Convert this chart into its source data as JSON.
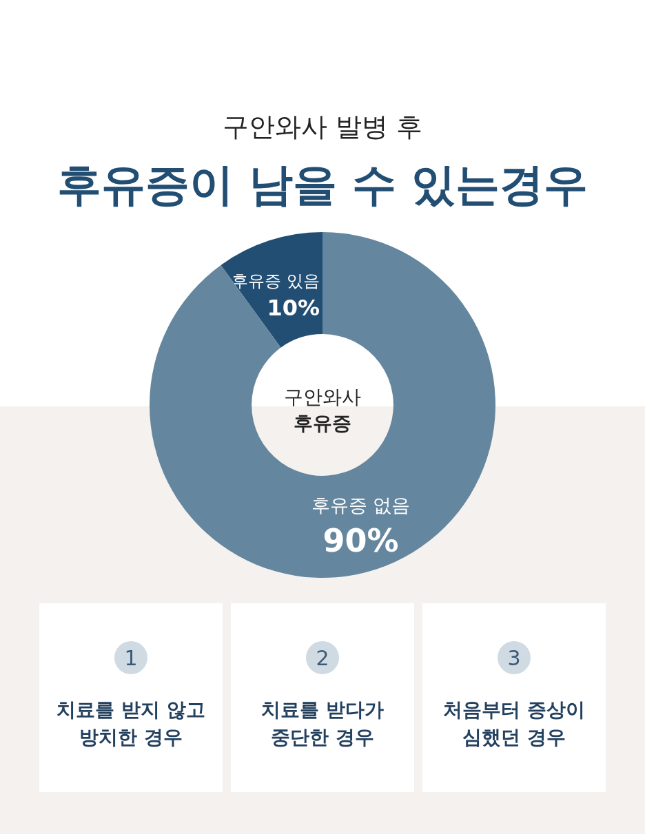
{
  "chart_data": {
    "type": "donut",
    "subtitle": "구안와사 발병 후",
    "title": "후유증이 남을 수 있는경우",
    "categories": [
      "후유증 있음",
      "후유증 없음"
    ],
    "values": [
      10,
      90
    ],
    "value_labels": [
      "10%",
      "90%"
    ],
    "colors": [
      "#234e73",
      "#65869f"
    ],
    "annotations": [
      "구안와사\n후유증",
      "1",
      "치료를 받지 않고\n방치한 경우",
      "2",
      "치료를 받다가\n중단한 경우",
      "3",
      "처음부터 증상이\n심했던 경우"
    ]
  }
}
